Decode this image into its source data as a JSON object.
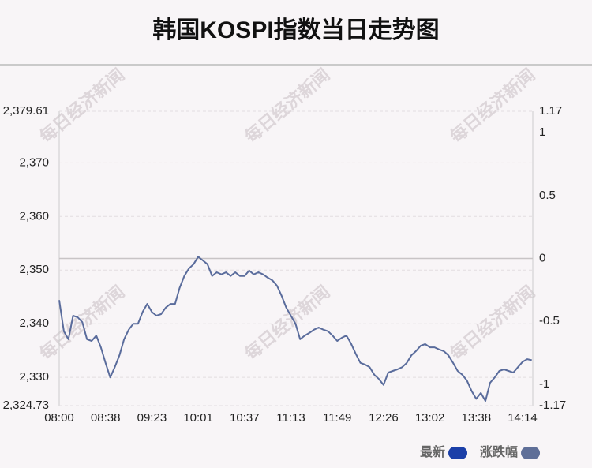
{
  "chart_data": {
    "type": "line",
    "title": "韩国KOSPI指数当日走势图",
    "watermark": "每日经济新闻",
    "categories": [
      "08:00",
      null,
      null,
      null,
      null,
      null,
      null,
      null,
      null,
      null,
      "08:38",
      null,
      null,
      null,
      null,
      null,
      null,
      null,
      null,
      null,
      "09:23",
      null,
      null,
      null,
      null,
      null,
      null,
      null,
      null,
      null,
      "10:01",
      null,
      null,
      null,
      null,
      null,
      null,
      null,
      null,
      null,
      "10:37",
      null,
      null,
      null,
      null,
      null,
      null,
      null,
      null,
      null,
      "11:13",
      null,
      null,
      null,
      null,
      null,
      null,
      null,
      null,
      null,
      "11:49",
      null,
      null,
      null,
      null,
      null,
      null,
      null,
      null,
      null,
      "12:26",
      null,
      null,
      null,
      null,
      null,
      null,
      null,
      null,
      null,
      "13:02",
      null,
      null,
      null,
      null,
      null,
      null,
      null,
      null,
      null,
      "13:38",
      null,
      null,
      null,
      null,
      null,
      null,
      null,
      null,
      null,
      "14:14",
      null,
      null
    ],
    "series": [
      {
        "color": "#5a6c9c",
        "values": [
          2344.4,
          2338.6,
          2337.1,
          2341.5,
          2341.2,
          2340.3,
          2337.1,
          2336.8,
          2337.8,
          2335.6,
          2332.7,
          2330.0,
          2331.9,
          2334.1,
          2337.1,
          2338.9,
          2340.0,
          2340.0,
          2342.2,
          2343.7,
          2342.2,
          2341.5,
          2341.8,
          2343.0,
          2343.7,
          2343.7,
          2346.7,
          2348.9,
          2350.3,
          2351.1,
          2352.5,
          2351.8,
          2351.1,
          2348.9,
          2349.6,
          2349.2,
          2349.6,
          2348.9,
          2349.6,
          2348.9,
          2348.9,
          2349.9,
          2349.2,
          2349.6,
          2349.2,
          2348.6,
          2348.1,
          2347.1,
          2345.2,
          2343.0,
          2341.5,
          2340.0,
          2337.1,
          2337.8,
          2338.3,
          2338.9,
          2339.3,
          2338.9,
          2338.6,
          2337.8,
          2336.8,
          2337.4,
          2337.8,
          2336.3,
          2334.4,
          2332.7,
          2332.4,
          2331.9,
          2330.5,
          2329.7,
          2328.6,
          2330.9,
          2331.2,
          2331.5,
          2331.9,
          2332.7,
          2334.1,
          2334.9,
          2335.9,
          2336.2,
          2335.6,
          2335.6,
          2335.2,
          2334.9,
          2334.1,
          2332.7,
          2331.2,
          2330.5,
          2329.4,
          2327.5,
          2326.0,
          2327.1,
          2325.6,
          2329.0,
          2330.0,
          2331.2,
          2331.5,
          2331.2,
          2330.9,
          2331.9,
          2332.9,
          2333.4,
          2333.2
        ]
      }
    ],
    "ylim": [
      2324.73,
      2379.61
    ],
    "yticks": [
      {
        "value": 2324.73,
        "label": "2,324.73"
      },
      {
        "value": 2330,
        "label": "2,330"
      },
      {
        "value": 2340,
        "label": "2,340"
      },
      {
        "value": 2350,
        "label": "2,350"
      },
      {
        "value": 2360,
        "label": "2,360"
      },
      {
        "value": 2370,
        "label": "2,370"
      },
      {
        "value": 2379.61,
        "label": "2,379.61"
      }
    ],
    "y2lim": [
      -1.17,
      1.17
    ],
    "y2ticks": [
      -1.17,
      -1,
      -0.5,
      0,
      0.5,
      1,
      1.17
    ],
    "grid": true,
    "legend": [
      {
        "name": "最新",
        "color": "#1b3fa8"
      },
      {
        "name": "涨跌幅",
        "color": "#5f6f98"
      }
    ],
    "legend_position": "bottom-right"
  }
}
